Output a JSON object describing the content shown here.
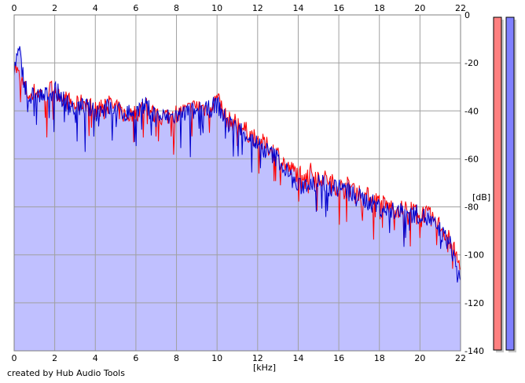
{
  "credit": "created by Hub Audio Tools",
  "chart_data": {
    "type": "line",
    "xlabel": "[kHz]",
    "ylabel": "[dB]",
    "xlim": [
      0,
      22
    ],
    "ylim": [
      -140,
      0
    ],
    "x_ticks": [
      0,
      2,
      4,
      6,
      8,
      10,
      12,
      14,
      16,
      18,
      20,
      22
    ],
    "y_ticks": [
      0,
      -20,
      -40,
      -60,
      -80,
      -100,
      -120,
      -140
    ],
    "grid": true,
    "x_tick_positions": "top-and-bottom",
    "y_tick_positions": "right",
    "fill_color": "#c0c0ff",
    "series": [
      {
        "color": "#ff0000",
        "x": [
          0,
          0.25,
          0.5,
          0.75,
          1,
          1.5,
          2,
          2.5,
          3,
          3.5,
          4,
          4.5,
          5,
          5.5,
          6,
          6.5,
          7,
          7.5,
          8,
          8.5,
          9,
          9.5,
          10,
          10.5,
          11,
          11.5,
          12,
          12.5,
          13,
          13.5,
          14,
          14.5,
          15,
          15.5,
          16,
          16.5,
          17,
          17.5,
          18,
          18.5,
          19,
          19.5,
          20,
          20.5,
          21,
          21.5,
          22
        ],
        "y": [
          -20,
          -26,
          -30,
          -34,
          -32,
          -33,
          -30,
          -35,
          -38,
          -36,
          -40,
          -36,
          -39,
          -42,
          -41,
          -37,
          -43,
          -42,
          -41,
          -40,
          -38,
          -39,
          -35,
          -44,
          -45,
          -49,
          -52,
          -55,
          -58,
          -64,
          -66,
          -65,
          -67,
          -69,
          -72,
          -71,
          -74,
          -76,
          -78,
          -80,
          -81,
          -81,
          -82,
          -84,
          -88,
          -94,
          -106
        ]
      },
      {
        "color": "#0000cc",
        "x": [
          0,
          0.25,
          0.5,
          0.75,
          1,
          1.5,
          2,
          2.5,
          3,
          3.5,
          4,
          4.5,
          5,
          5.5,
          6,
          6.5,
          7,
          7.5,
          8,
          8.5,
          9,
          9.5,
          10,
          10.5,
          11,
          11.5,
          12,
          12.5,
          13,
          13.5,
          14,
          14.5,
          15,
          15.5,
          16,
          16.5,
          17,
          17.5,
          18,
          18.5,
          19,
          19.5,
          20,
          20.5,
          21,
          21.5,
          22
        ],
        "y": [
          -22,
          -15,
          -28,
          -35,
          -33,
          -34,
          -31,
          -36,
          -39,
          -38,
          -41,
          -38,
          -40,
          -41,
          -40,
          -38,
          -42,
          -43,
          -42,
          -41,
          -40,
          -40,
          -37,
          -45,
          -47,
          -50,
          -54,
          -57,
          -60,
          -66,
          -72,
          -70,
          -70,
          -71,
          -72,
          -74,
          -76,
          -78,
          -80,
          -82,
          -82,
          -83,
          -83,
          -86,
          -90,
          -96,
          -110
        ]
      }
    ],
    "meters": [
      {
        "color": "#ff8080",
        "level": 1
      },
      {
        "color": "#8080ff",
        "level": 1
      }
    ]
  }
}
